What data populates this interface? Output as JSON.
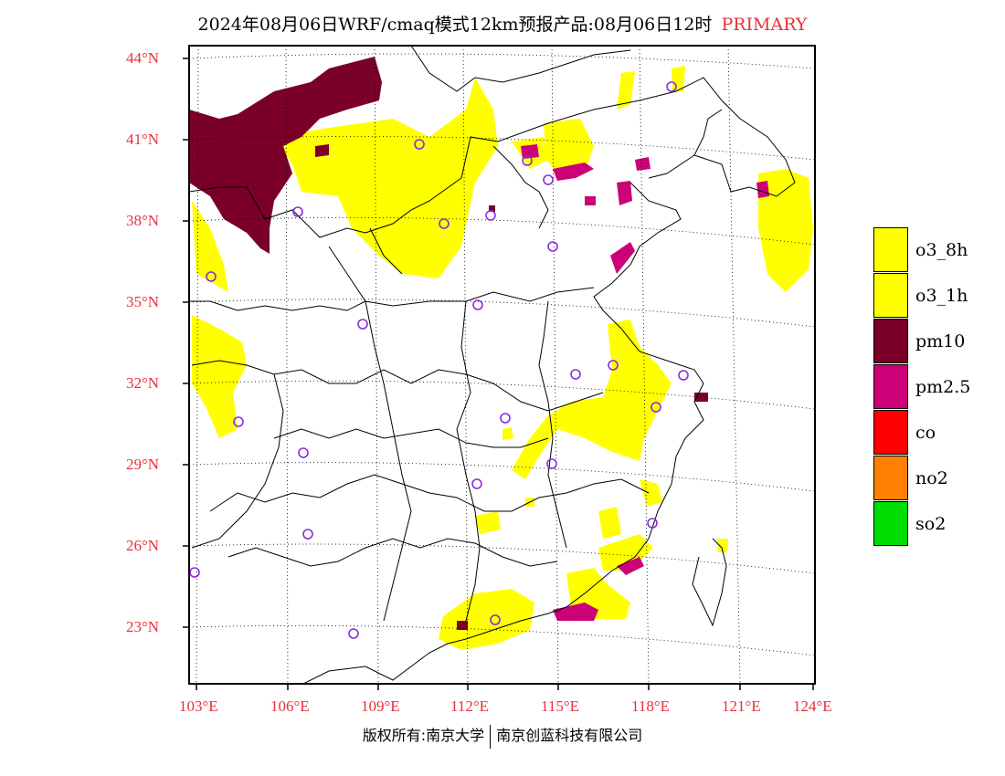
{
  "title": {
    "main": "2024年08月06日WRF/cmaq模式12km预报产品:08月06日12时",
    "tag": "PRIMARY"
  },
  "colors": {
    "frame": "#000000",
    "axis_label": "#e8303a",
    "o3": "#ffff00",
    "pm10": "#7a0028",
    "pm25": "#cc0077",
    "co": "#ff0000",
    "no2": "#ff8000",
    "so2": "#00dd00",
    "site_marker": "#8a2be2"
  },
  "axes": {
    "lat_labels": [
      "44°N",
      "41°N",
      "38°N",
      "35°N",
      "32°N",
      "29°N",
      "26°N",
      "23°N"
    ],
    "lon_labels": [
      "103°E",
      "106°E",
      "109°E",
      "112°E",
      "115°E",
      "118°E",
      "121°E",
      "124°E"
    ]
  },
  "legend": [
    {
      "label": "o3_8h",
      "color": "#ffff00"
    },
    {
      "label": "o3_1h",
      "color": "#ffff00"
    },
    {
      "label": "pm10",
      "color": "#7a0028"
    },
    {
      "label": "pm2.5",
      "color": "#cc0077"
    },
    {
      "label": "co",
      "color": "#ff0000"
    },
    {
      "label": "no2",
      "color": "#ff8000"
    },
    {
      "label": "so2",
      "color": "#00dd00"
    }
  ],
  "footer": {
    "left": "版权所有:南京大学",
    "right": "南京创蓝科技有限公司"
  }
}
